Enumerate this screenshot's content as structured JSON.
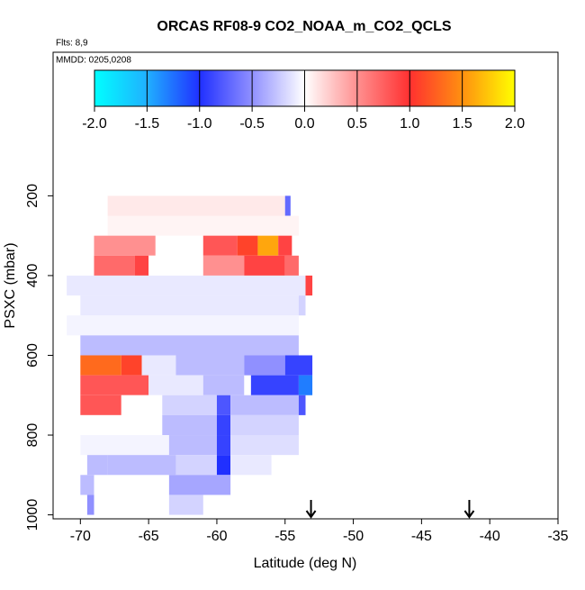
{
  "chart_data": {
    "type": "heatmap",
    "title": "ORCAS RF08-9 CO2_NOAA_m_CO2_QCLS",
    "subtitle": "Flts: 8,9",
    "annotation": "MMDD: 0205,0208",
    "xlabel": "Latitude (deg N)",
    "ylabel": "PSXC (mbar)",
    "xlim": [
      -72,
      -35
    ],
    "xticks": [
      -70,
      -65,
      -60,
      -55,
      -50,
      -45,
      -40,
      -35
    ],
    "ylim": [
      1010,
      -160
    ],
    "yticks": [
      200,
      400,
      600,
      800,
      1000
    ],
    "colorbar": {
      "range": [
        -2,
        2
      ],
      "ticks": [
        -2.0,
        -1.5,
        -1.0,
        -0.5,
        0.0,
        0.5,
        1.0,
        1.5,
        2.0
      ],
      "tick_labels": [
        "-2.0",
        "-1.5",
        "-1.0",
        "-0.5",
        "0.0",
        "0.5",
        "1.0",
        "1.5",
        "2.0"
      ],
      "colors": [
        "#00ffff",
        "#20b0ff",
        "#2030ff",
        "#9090ff",
        "#ffffff",
        "#ff9090",
        "#ff3030",
        "#ff9010",
        "#ffff00"
      ]
    },
    "markers_x": [
      -53.1,
      -41.5
    ],
    "cells": [
      [
        -68,
        -55,
        200,
        250,
        0.1
      ],
      [
        -55,
        -54.6,
        200,
        250,
        -0.7
      ],
      [
        -68,
        -54,
        250,
        300,
        0.05
      ],
      [
        -69,
        -64.5,
        300,
        350,
        0.5
      ],
      [
        -61,
        -58.5,
        300,
        350,
        0.8
      ],
      [
        -58.5,
        -57,
        300,
        350,
        1.1
      ],
      [
        -57,
        -55.5,
        300,
        350,
        1.6
      ],
      [
        -55.5,
        -54.5,
        300,
        350,
        0.9
      ],
      [
        -69,
        -66,
        350,
        400,
        0.7
      ],
      [
        -66,
        -65,
        350,
        400,
        0.9
      ],
      [
        -65,
        -61,
        350,
        400,
        0.0
      ],
      [
        -61,
        -58,
        350,
        400,
        0.5
      ],
      [
        -58,
        -55,
        350,
        400,
        0.9
      ],
      [
        -55,
        -54,
        350,
        400,
        0.7
      ],
      [
        -71,
        -53.5,
        400,
        450,
        -0.1
      ],
      [
        -53.5,
        -53,
        400,
        450,
        0.9
      ],
      [
        -70,
        -54,
        450,
        500,
        -0.1
      ],
      [
        -54,
        -53.5,
        450,
        500,
        -0.2
      ],
      [
        -71,
        -54,
        500,
        550,
        -0.05
      ],
      [
        -70,
        -54,
        550,
        600,
        -0.3
      ],
      [
        -70,
        -67,
        600,
        650,
        1.3
      ],
      [
        -67,
        -65.5,
        600,
        650,
        1.1
      ],
      [
        -65.5,
        -63,
        600,
        650,
        -0.1
      ],
      [
        -63,
        -58,
        600,
        650,
        -0.3
      ],
      [
        -58,
        -55,
        600,
        650,
        -0.5
      ],
      [
        -55,
        -53,
        600,
        650,
        -0.9
      ],
      [
        -70,
        -65,
        650,
        700,
        0.8
      ],
      [
        -65,
        -61,
        650,
        700,
        -0.1
      ],
      [
        -61,
        -58,
        650,
        700,
        -0.3
      ],
      [
        -57.5,
        -54,
        650,
        700,
        -0.9
      ],
      [
        -54,
        -53,
        650,
        700,
        -1.3
      ],
      [
        -70,
        -67,
        700,
        750,
        0.8
      ],
      [
        -67,
        -64,
        700,
        750,
        0.0
      ],
      [
        -64,
        -60,
        700,
        750,
        -0.2
      ],
      [
        -60,
        -59,
        700,
        750,
        -0.8
      ],
      [
        -59,
        -54,
        700,
        750,
        -0.3
      ],
      [
        -54,
        -53.5,
        700,
        750,
        -0.8
      ],
      [
        -70,
        -64,
        750,
        800,
        0.0
      ],
      [
        -64,
        -60,
        750,
        800,
        -0.3
      ],
      [
        -60,
        -59,
        750,
        800,
        -0.9
      ],
      [
        -59,
        -54,
        750,
        800,
        -0.2
      ],
      [
        -70,
        -63.5,
        800,
        850,
        -0.05
      ],
      [
        -63.5,
        -60,
        800,
        850,
        -0.3
      ],
      [
        -60,
        -59,
        800,
        850,
        -0.9
      ],
      [
        -59,
        -54,
        800,
        850,
        -0.15
      ],
      [
        -69.5,
        -68,
        850,
        900,
        -0.3
      ],
      [
        -68,
        -63,
        850,
        900,
        -0.3
      ],
      [
        -63,
        -60,
        850,
        900,
        -0.2
      ],
      [
        -60,
        -59,
        850,
        900,
        -1.0
      ],
      [
        -59,
        -56,
        850,
        900,
        -0.1
      ],
      [
        -70,
        -69,
        900,
        950,
        -0.3
      ],
      [
        -63.5,
        -59,
        900,
        950,
        -0.4
      ],
      [
        -69.5,
        -69,
        950,
        1000,
        -0.5
      ],
      [
        -63.5,
        -61,
        950,
        1000,
        -0.2
      ]
    ]
  }
}
